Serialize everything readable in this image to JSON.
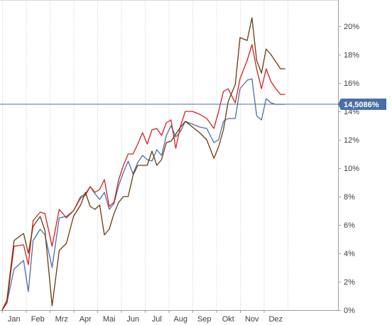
{
  "chart_data": {
    "type": "line",
    "title": "",
    "xlabel": "",
    "ylabel": "",
    "x_tick_labels": [
      "Jan",
      "Feb",
      "Mrz",
      "Apr",
      "Mai",
      "Jun",
      "Jul",
      "Aug",
      "Sep",
      "Okt",
      "Nov",
      "Dez"
    ],
    "y_tick_labels": [
      "0%",
      "2%",
      "4%",
      "6%",
      "8%",
      "10%",
      "12%",
      "14%",
      "16%",
      "18%",
      "20%"
    ],
    "ylim": [
      0,
      21
    ],
    "xlim": [
      0,
      12
    ],
    "y_axis_position": "right",
    "grid": "vertical dotted lines at month boundaries",
    "legend": "none",
    "reference_line": {
      "value": 14.5086,
      "label": "14,5086%",
      "color": "#4a6fa5"
    },
    "series": [
      {
        "color": "#4a6fa5",
        "x": [
          0,
          0.2,
          0.5,
          0.9,
          1.1,
          1.3,
          1.6,
          1.8,
          2.1,
          2.4,
          2.7,
          3.0,
          3.3,
          3.5,
          3.7,
          3.9,
          4.1,
          4.3,
          4.5,
          4.7,
          4.9,
          5.1,
          5.3,
          5.5,
          5.7,
          5.9,
          6.1,
          6.3,
          6.5,
          6.7,
          6.9,
          7.1,
          7.3,
          7.5,
          7.7,
          8.0,
          8.3,
          8.6,
          8.9,
          9.1,
          9.3,
          9.5,
          9.8,
          10.0,
          10.3,
          10.5,
          10.7,
          10.9,
          11.1,
          11.3,
          11.5,
          11.7,
          11.9
        ],
        "values": [
          0.0,
          0.5,
          2.9,
          3.5,
          1.3,
          4.9,
          5.7,
          5.3,
          3.0,
          6.5,
          6.6,
          7.0,
          8.0,
          8.2,
          8.7,
          8.2,
          7.8,
          8.3,
          7.1,
          7.5,
          8.8,
          9.7,
          10.5,
          9.6,
          10.4,
          10.9,
          10.6,
          10.5,
          11.3,
          10.9,
          12.3,
          13.0,
          12.2,
          12.6,
          13.3,
          13.1,
          12.9,
          12.8,
          11.8,
          12.0,
          13.3,
          13.5,
          13.5,
          15.6,
          16.2,
          16.3,
          13.7,
          13.4,
          14.9,
          14.6,
          14.5,
          14.5,
          14.5
        ]
      },
      {
        "color": "#d42020",
        "x": [
          0,
          0.2,
          0.5,
          0.9,
          1.1,
          1.3,
          1.6,
          1.8,
          2.1,
          2.4,
          2.7,
          3.0,
          3.3,
          3.5,
          3.7,
          3.9,
          4.1,
          4.3,
          4.5,
          4.7,
          4.9,
          5.1,
          5.3,
          5.5,
          5.7,
          5.9,
          6.1,
          6.3,
          6.5,
          6.7,
          6.9,
          7.1,
          7.3,
          7.5,
          7.7,
          8.0,
          8.3,
          8.6,
          8.9,
          9.1,
          9.3,
          9.5,
          9.8,
          10.0,
          10.3,
          10.5,
          10.7,
          10.9,
          11.1,
          11.3,
          11.5,
          11.7,
          11.9
        ],
        "values": [
          0.0,
          0.5,
          4.5,
          4.6,
          3.2,
          6.3,
          6.9,
          6.8,
          4.5,
          7.1,
          6.5,
          7.0,
          7.9,
          8.1,
          8.7,
          8.3,
          8.5,
          9.2,
          7.3,
          7.6,
          9.2,
          10.2,
          11.0,
          11.0,
          11.7,
          12.5,
          11.7,
          12.7,
          12.8,
          12.3,
          13.2,
          13.4,
          11.4,
          13.0,
          14.0,
          14.0,
          13.8,
          13.5,
          12.8,
          14.0,
          15.4,
          15.6,
          14.6,
          16.3,
          17.6,
          18.7,
          17.0,
          15.6,
          17.0,
          16.1,
          15.6,
          15.2,
          15.2
        ]
      },
      {
        "color": "#6b3a10",
        "x": [
          0,
          0.2,
          0.5,
          0.9,
          1.1,
          1.3,
          1.6,
          1.8,
          2.1,
          2.4,
          2.7,
          3.0,
          3.3,
          3.5,
          3.7,
          3.9,
          4.1,
          4.3,
          4.5,
          4.7,
          4.9,
          5.1,
          5.3,
          5.5,
          5.7,
          5.9,
          6.1,
          6.3,
          6.5,
          6.7,
          6.9,
          7.1,
          7.3,
          7.5,
          7.7,
          8.0,
          8.3,
          8.6,
          8.9,
          9.1,
          9.3,
          9.5,
          9.8,
          10.0,
          10.3,
          10.5,
          10.7,
          10.9,
          11.1,
          11.3,
          11.5,
          11.7,
          11.9
        ],
        "values": [
          0.0,
          0.7,
          4.9,
          5.4,
          4.0,
          5.9,
          6.6,
          5.6,
          0.3,
          4.2,
          4.7,
          6.6,
          7.4,
          8.3,
          7.3,
          7.1,
          7.4,
          5.3,
          5.7,
          6.8,
          7.6,
          8.0,
          8.0,
          9.5,
          10.2,
          10.2,
          10.2,
          11.2,
          10.2,
          10.6,
          11.8,
          11.9,
          12.4,
          12.9,
          13.3,
          12.9,
          12.5,
          12.0,
          10.7,
          11.5,
          12.7,
          14.7,
          15.9,
          19.2,
          19.0,
          20.6,
          17.6,
          16.7,
          18.4,
          18.0,
          17.5,
          17.0,
          17.0
        ]
      }
    ]
  }
}
